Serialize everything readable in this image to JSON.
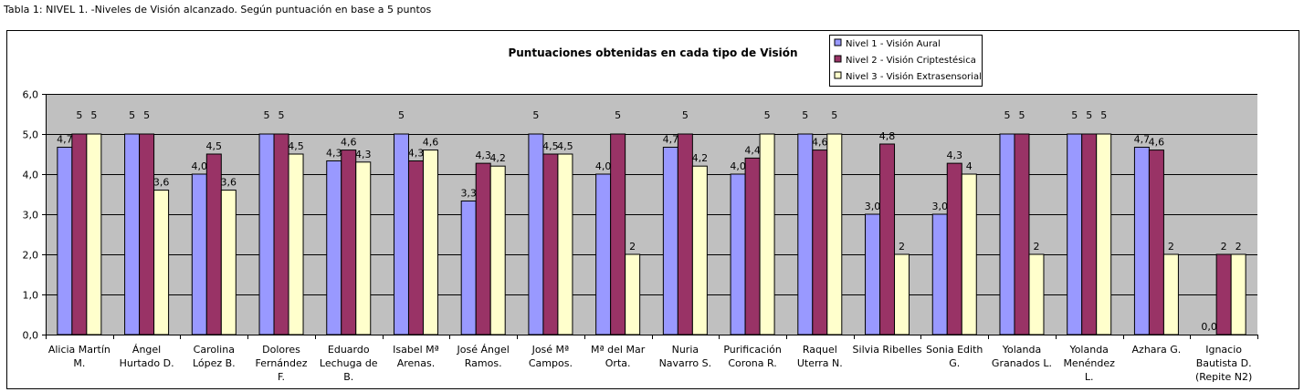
{
  "caption": "Tabla 1: NIVEL 1. -Niveles de Visión alcanzado. Según puntuación en base a 5 puntos",
  "chart_data": {
    "type": "bar",
    "title": "Puntuaciones obtenidas en cada tipo de Visión",
    "xlabel": "",
    "ylabel": "",
    "ylim": [
      0,
      6
    ],
    "yticks": [
      "0,0",
      "1,0",
      "2,0",
      "3,0",
      "4,0",
      "5,0",
      "6,0"
    ],
    "grid": true,
    "legend_position": "top-right",
    "plot_background": "#c0c0c0",
    "categories": [
      [
        "Alicia Martín",
        "M."
      ],
      [
        "Ángel",
        "Hurtado D."
      ],
      [
        "Carolina",
        "López B."
      ],
      [
        "Dolores",
        "Fernández",
        "F."
      ],
      [
        "Eduardo",
        "Lechuga de",
        "B."
      ],
      [
        "Isabel Mª",
        "Arenas."
      ],
      [
        "José Ángel",
        "Ramos."
      ],
      [
        "José Mª",
        "Campos."
      ],
      [
        "Mª del Mar",
        "Orta."
      ],
      [
        "Nuria",
        "Navarro S."
      ],
      [
        "Purificación",
        "Corona R."
      ],
      [
        "Raquel",
        "Uterra N."
      ],
      [
        "Silvia Ribelles"
      ],
      [
        "Sonia Edith",
        "G."
      ],
      [
        "Yolanda",
        "Granados L."
      ],
      [
        "Yolanda",
        "Menéndez",
        "L."
      ],
      [
        "Azhara G."
      ],
      [
        "Ignacio",
        "Bautista D.",
        "(Repite N2)"
      ]
    ],
    "series": [
      {
        "name": "Nivel 1 - Visión Aural",
        "color": "#9999ff",
        "values": [
          4.67,
          5,
          4.0,
          5,
          4.33,
          5,
          3.33,
          5,
          4.0,
          4.67,
          4.0,
          5,
          3.0,
          3.0,
          5,
          5,
          4.67,
          0.0
        ],
        "labels": [
          "4,7",
          "5",
          "4,0",
          "5",
          "4,3",
          "5",
          "3,3",
          "5",
          "4,0",
          "4,7",
          "4,0",
          "5",
          "3,0",
          "3,0",
          "5",
          "5",
          "4,7",
          "0,0"
        ]
      },
      {
        "name": "Nivel 2 - Visión Criptestésica",
        "color": "#993366",
        "values": [
          5,
          5,
          4.5,
          5,
          4.6,
          4.33,
          4.27,
          4.5,
          5,
          5,
          4.4,
          4.6,
          4.75,
          4.27,
          5,
          5,
          4.6,
          2
        ],
        "labels": [
          "5",
          "5",
          "4,5",
          "5",
          "4,6",
          "4,3",
          "4,3",
          "4,5",
          "5",
          "5",
          "4,4",
          "4,6",
          "4,8",
          "4,3",
          "5",
          "5",
          "4,6",
          "2"
        ]
      },
      {
        "name": "Nivel 3 - Visión Extrasensorial",
        "color": "#ffffcc",
        "values": [
          5,
          3.6,
          3.6,
          4.5,
          4.3,
          4.6,
          4.2,
          4.5,
          2,
          4.2,
          5,
          5,
          2,
          4,
          2,
          5,
          2,
          2
        ],
        "labels": [
          "5",
          "3,6",
          "3,6",
          "4,5",
          "4,3",
          "4,6",
          "4,2",
          "4,5",
          "2",
          "4,2",
          "5",
          "5",
          "2",
          "4",
          "2",
          "5",
          "2",
          "2"
        ]
      }
    ]
  }
}
